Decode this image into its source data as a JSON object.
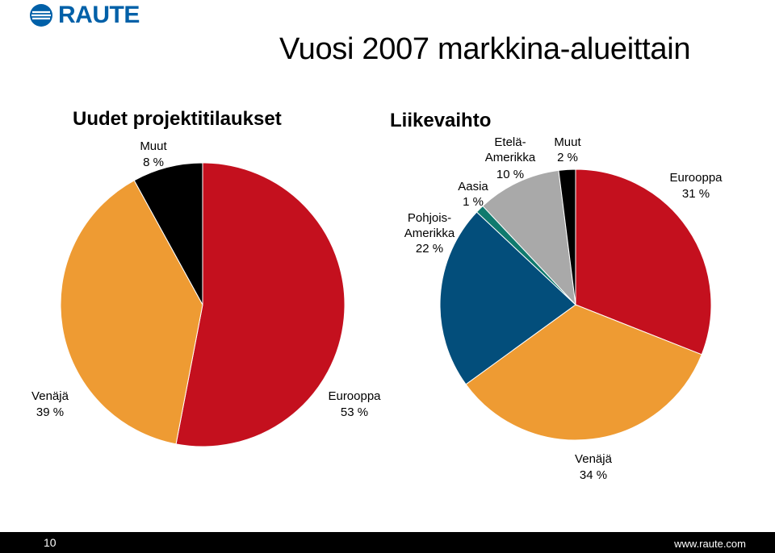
{
  "brand": {
    "logo_text": "RAUTE",
    "logo_color": "#0060A8"
  },
  "slide": {
    "title": "Vuosi 2007 markkina-alueittain",
    "page_number": "10",
    "url": "www.raute.com"
  },
  "chart_data": [
    {
      "type": "pie",
      "title": "Uudet projektitilaukset",
      "slices": [
        {
          "name": "Eurooppa",
          "value": 53,
          "label": "53 %",
          "color": "#C4101E"
        },
        {
          "name": "Venäjä",
          "value": 39,
          "label": "39 %",
          "color": "#EE9B33"
        },
        {
          "name": "Muut",
          "value": 8,
          "label": "8 %",
          "color": "#000000"
        }
      ],
      "start": "12 o'clock",
      "direction": "clockwise"
    },
    {
      "type": "pie",
      "title": "Liikevaihto",
      "slices": [
        {
          "name": "Eurooppa",
          "value": 31,
          "label": "31 %",
          "color": "#C4101E"
        },
        {
          "name": "Venäjä",
          "value": 34,
          "label": "34 %",
          "color": "#EE9B33"
        },
        {
          "name": "Pohjois-Amerikka",
          "value": 22,
          "label": "22 %",
          "color": "#034E7B"
        },
        {
          "name": "Aasia",
          "value": 1,
          "label": "1 %",
          "color": "#0F7A6E"
        },
        {
          "name": "Etelä-Amerikka",
          "value": 10,
          "label": "10 %",
          "color": "#A9A9A9"
        },
        {
          "name": "Muut",
          "value": 2,
          "label": "2 %",
          "color": "#000000"
        }
      ],
      "start": "12 o'clock",
      "direction": "clockwise"
    }
  ]
}
